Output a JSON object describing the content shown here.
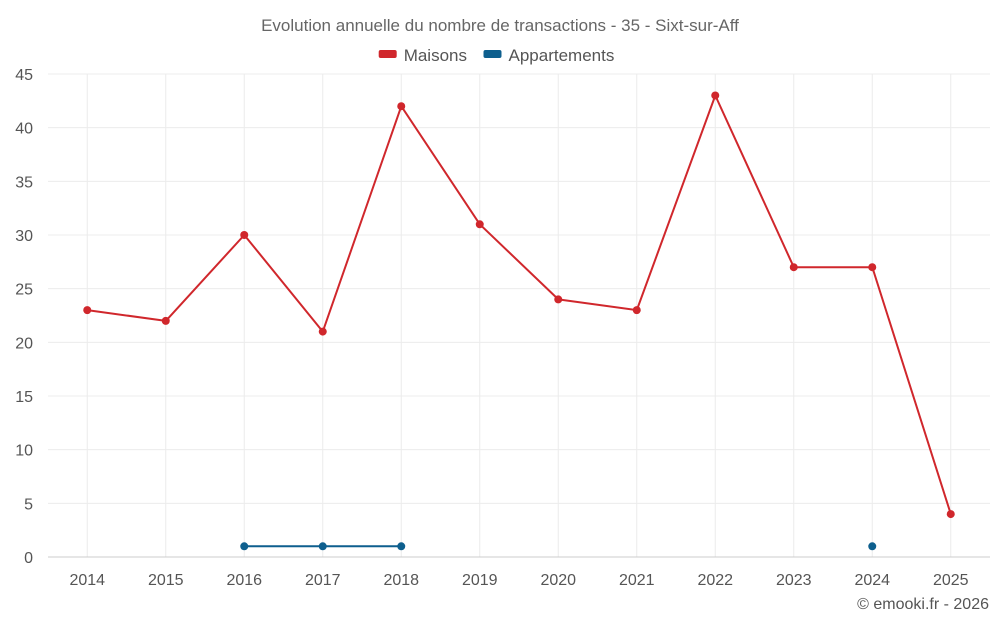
{
  "chart_data": {
    "type": "line",
    "title": "Evolution annuelle du nombre de transactions - 35 - Sixt-sur-Aff",
    "categories": [
      "2014",
      "2015",
      "2016",
      "2017",
      "2018",
      "2019",
      "2020",
      "2021",
      "2022",
      "2023",
      "2024",
      "2025"
    ],
    "ylim": [
      0,
      45
    ],
    "yticks": [
      0,
      5,
      10,
      15,
      20,
      25,
      30,
      35,
      40,
      45
    ],
    "legend_position": "top-center",
    "grid": true,
    "series": [
      {
        "name": "Maisons",
        "color": "#d0272c",
        "values": [
          23,
          22,
          30,
          21,
          42,
          31,
          24,
          23,
          43,
          27,
          27,
          4
        ]
      },
      {
        "name": "Appartements",
        "color": "#0e5f8e",
        "values": [
          null,
          null,
          1,
          1,
          1,
          null,
          null,
          null,
          null,
          null,
          1,
          null
        ]
      }
    ],
    "credit": "© emooki.fr - 2026"
  }
}
